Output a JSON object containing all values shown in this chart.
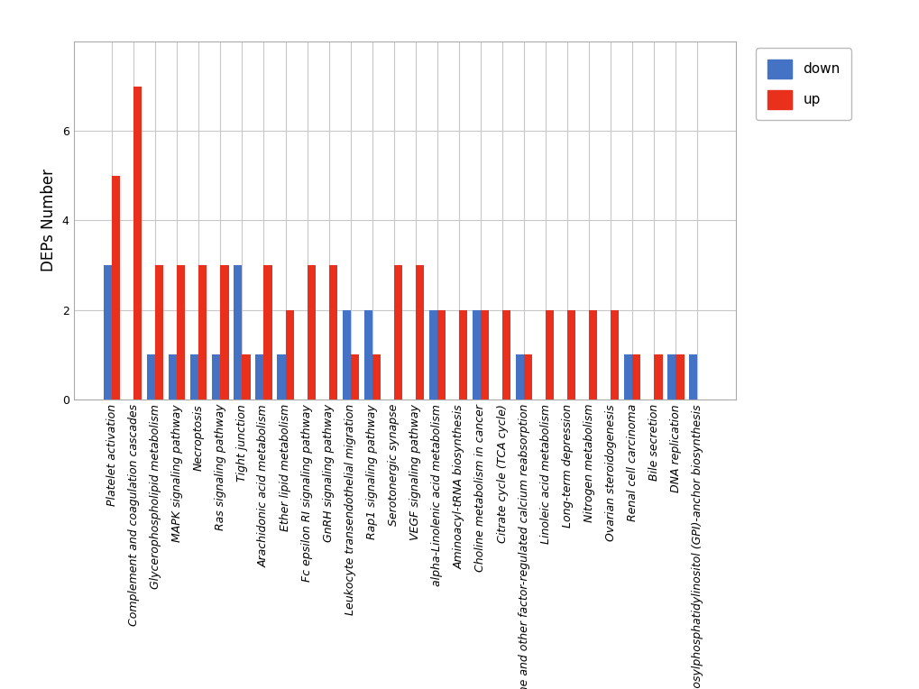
{
  "categories": [
    "Platelet activation",
    "Complement and coagulation cascades",
    "Glycerophospholipid metabolism",
    "MAPK signaling pathway",
    "Necroptosis",
    "Ras signaling pathway",
    "Tight junction",
    "Arachidonic acid metabolism",
    "Ether lipid metabolism",
    "Fc epsilon RI signaling pathway",
    "GnRH signaling pathway",
    "Leukocyte transendothelial migration",
    "Rap1 signaling pathway",
    "Serotonergic synapse",
    "VEGF signaling pathway",
    "alpha-Linolenic acid metabolism",
    "Aminoacyl-tRNA biosynthesis",
    "Choline metabolism in cancer",
    "Citrate cycle (TCA cycle)",
    "Endocrine and other factor-regulated calcium reabsorption",
    "Linoleic acid metabolism",
    "Long-term depression",
    "Nitrogen metabolism",
    "Ovarian steroidogenesis",
    "Renal cell carcinoma",
    "Bile secretion",
    "DNA replication",
    "Glycosylphosphatidylinositol (GPI)-anchor biosynthesis"
  ],
  "down": [
    3,
    0,
    1,
    1,
    1,
    1,
    3,
    1,
    1,
    0,
    0,
    2,
    2,
    0,
    0,
    2,
    0,
    2,
    0,
    1,
    0,
    0,
    0,
    0,
    1,
    0,
    1,
    1
  ],
  "up": [
    5,
    7,
    3,
    3,
    3,
    3,
    1,
    3,
    2,
    3,
    3,
    1,
    1,
    3,
    3,
    2,
    2,
    2,
    2,
    1,
    2,
    2,
    2,
    2,
    1,
    1,
    1,
    0
  ],
  "down_color": "#4472C4",
  "up_color": "#E8301C",
  "ylabel": "DEPs Number",
  "ylim": [
    0,
    8
  ],
  "yticks": [
    0,
    2,
    4,
    6
  ],
  "background_color": "#FFFFFF",
  "grid_color": "#C8C8C8",
  "bar_width": 0.38,
  "legend_labels": [
    "down",
    "up"
  ],
  "axis_fontsize": 12,
  "tick_fontsize": 9,
  "legend_fontsize": 11
}
